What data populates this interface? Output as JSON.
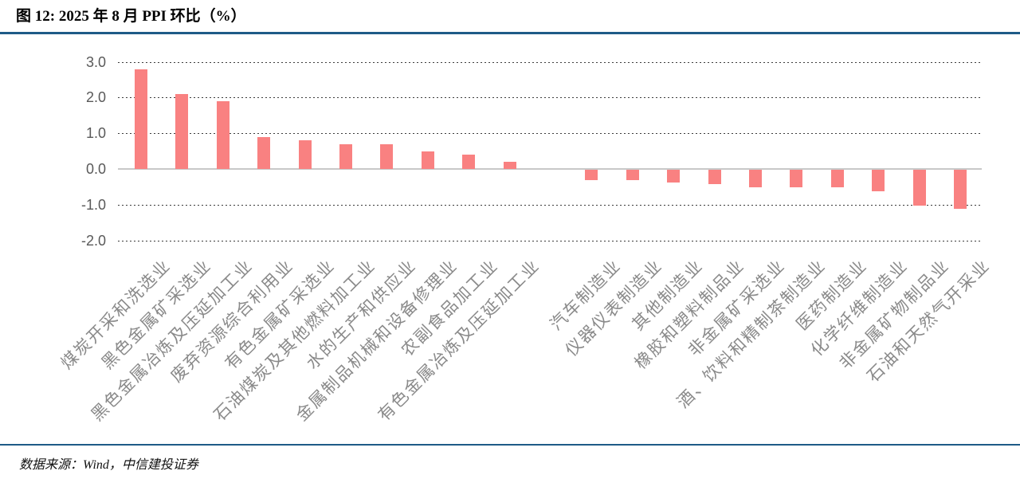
{
  "header": {
    "title": "图 12: 2025 年 8 月 PPI 环比（%）"
  },
  "footer": {
    "source": "数据来源：Wind，中信建投证券"
  },
  "colors": {
    "rule_blue": "#1e5b87",
    "bar_salmon": "#f98181",
    "zero_line_gray": "#c8c8c8",
    "ytick_gray": "#595959",
    "xlabel_gray": "#8a8a8a"
  },
  "chart_data": {
    "type": "bar",
    "title": "2025年8月PPI环比（%）",
    "unit": "%",
    "categories": [
      "煤炭开采和洗选业",
      "黑色金属矿采选业",
      "黑色金属冶炼及压延加工业",
      "废弃资源综合利用业",
      "有色金属矿采选业",
      "石油煤炭及其他燃料加工业",
      "水的生产和供应业",
      "金属制品机械和设备修理业",
      "农副食品加工业",
      "有色金属冶炼及压延加工业",
      "汽车制造业",
      "仪器仪表制造业",
      "其他制造业",
      "橡胶和塑料制品业",
      "非金属矿采选业",
      "酒、饮料和精制茶制造业",
      "医药制造业",
      "化学纤维制造业",
      "非金属矿物制品业",
      "石油和天然气开采业"
    ],
    "values": [
      2.8,
      2.1,
      1.9,
      0.9,
      0.8,
      0.7,
      0.7,
      0.5,
      0.4,
      0.2,
      -0.3,
      -0.3,
      -0.35,
      -0.4,
      -0.5,
      -0.5,
      -0.5,
      -0.6,
      -1.0,
      -1.1
    ],
    "gap_after_category_index": 9,
    "y_axis": {
      "ticks": [
        3.0,
        2.0,
        1.0,
        0.0,
        -1.0,
        -2.0
      ],
      "tick_labels": [
        "3.0",
        "2.0",
        "1.0",
        "0.0",
        "-1.0",
        "-2.0"
      ],
      "range": [
        -2.0,
        3.0
      ]
    },
    "xlabel": "",
    "ylabel": "",
    "grid": "horizontal-dashed",
    "legend": "none",
    "bar_color": "#f98181"
  }
}
